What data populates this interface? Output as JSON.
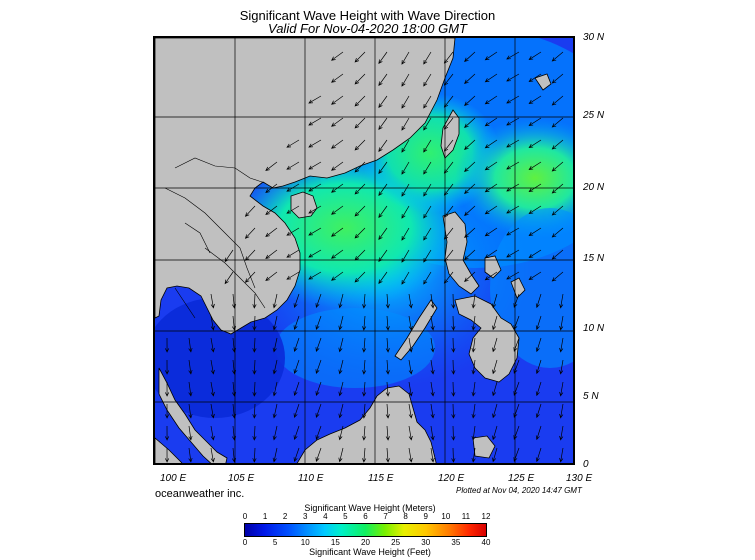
{
  "title": "Significant Wave Height with Wave Direction",
  "subtitle": "Valid For Nov-04-2020 18:00 GMT",
  "credit": "oceanweather inc.",
  "plotted": "Plotted at Nov 04, 2020 14:47 GMT",
  "lat_labels": [
    "30 N",
    "25 N",
    "20 N",
    "15 N",
    "10 N",
    "5 N",
    "0"
  ],
  "lon_labels": [
    "100 E",
    "105 E",
    "110 E",
    "115 E",
    "120 E",
    "125 E",
    "130 E"
  ],
  "colorbar": {
    "title_meters": "Significant Wave Height (Meters)",
    "title_feet": "Significant Wave Height (Feet)",
    "meters_ticks": [
      "0",
      "1",
      "2",
      "3",
      "4",
      "5",
      "6",
      "7",
      "8",
      "9",
      "10",
      "11",
      "12"
    ],
    "feet_ticks": [
      "0",
      "5",
      "10",
      "15",
      "20",
      "25",
      "30",
      "35",
      "40"
    ]
  },
  "colors": {
    "land": "#c0c0c0",
    "sea_low": "#1a3cf0",
    "sea_mid": "#00c8ff",
    "sea_high": "#30f070",
    "grid": "#000000"
  }
}
